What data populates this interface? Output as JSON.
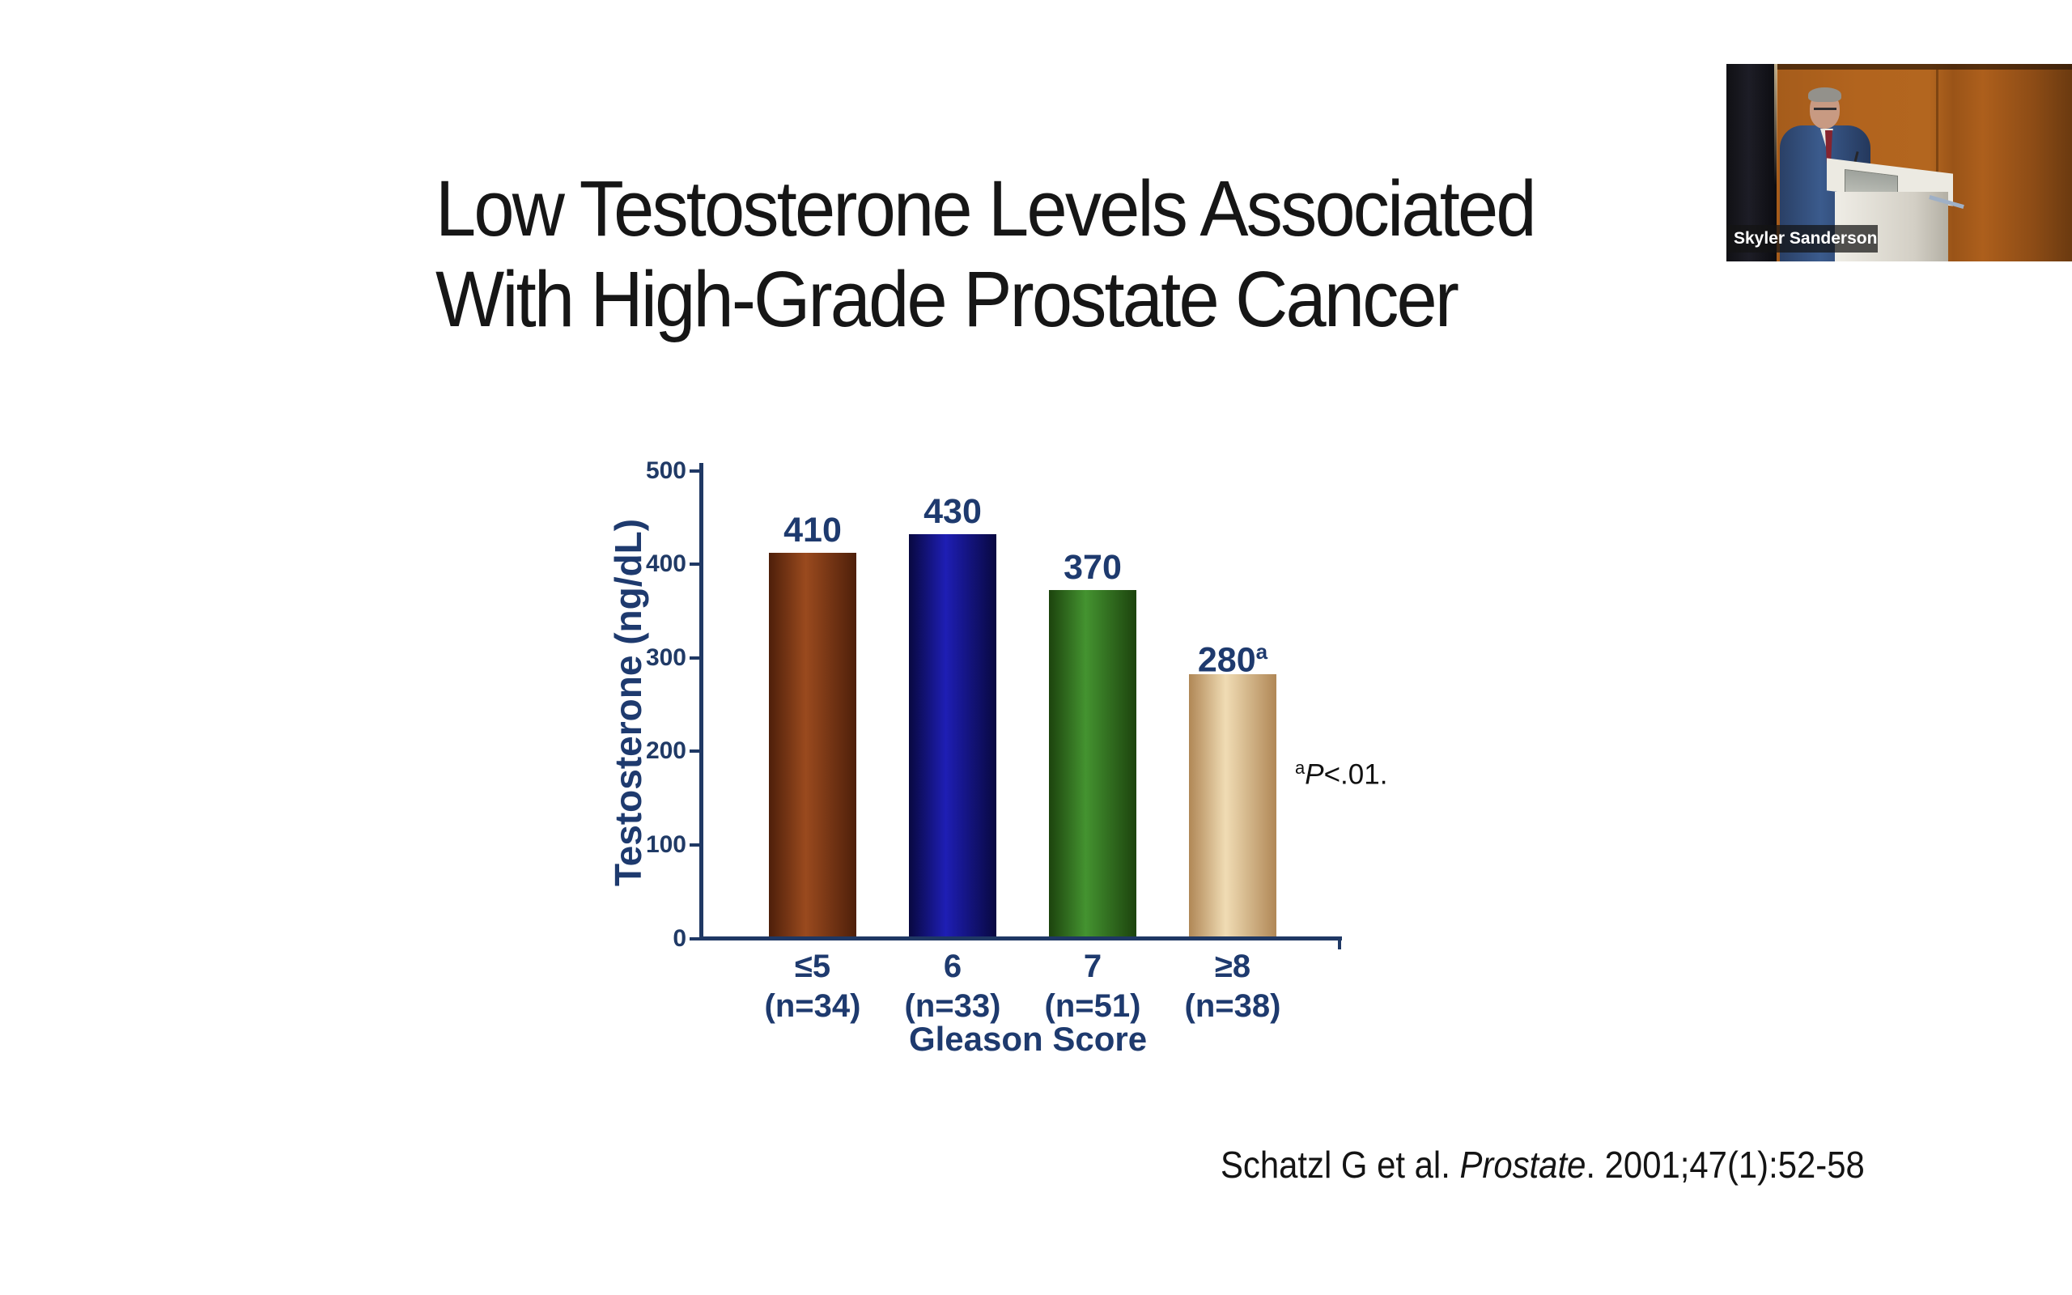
{
  "slide": {
    "title_line1": "Low Testosterone Levels Associated",
    "title_line2": "With High-Grade Prostate Cancer",
    "citation": {
      "prefix": "Schatzl G et al. ",
      "journal": "Prostate",
      "suffix": ". 2001;47(1):52-58"
    }
  },
  "webcam": {
    "name_label": "Skyler Sanderson"
  },
  "chart_data": {
    "type": "bar",
    "title": "",
    "categories": [
      "≤5",
      "6",
      "7",
      "≥8"
    ],
    "n_labels": [
      "(n=34)",
      "(n=33)",
      "(n=51)",
      "(n=38)"
    ],
    "values": [
      410,
      430,
      370,
      280
    ],
    "bar_value_labels": [
      {
        "t": "410",
        "sup": ""
      },
      {
        "t": "430",
        "sup": ""
      },
      {
        "t": "370",
        "sup": ""
      },
      {
        "t": "280",
        "sup": "a"
      }
    ],
    "xlabel": "Gleason Score",
    "ylabel": "Testosterone (ng/dL)",
    "ylim": [
      0,
      500
    ],
    "yticks": [
      0,
      100,
      200,
      300,
      400,
      500
    ],
    "grid": false,
    "legend": "none",
    "bar_colors": [
      {
        "name": "rust-brown",
        "dark": "#4e1f0a",
        "light": "#9a4a1e"
      },
      {
        "name": "navy-blue",
        "dark": "#080840",
        "light": "#1e1eb4"
      },
      {
        "name": "green",
        "dark": "#1c430d",
        "light": "#449330"
      },
      {
        "name": "tan",
        "dark": "#b08756",
        "light": "#f0dcb4"
      }
    ],
    "annotation": {
      "sup": "a",
      "p": "P",
      "rest": "<.01."
    },
    "axis_color": "#1f3864",
    "label_color": "#1e3a6e",
    "annotation_color": "#111111"
  }
}
